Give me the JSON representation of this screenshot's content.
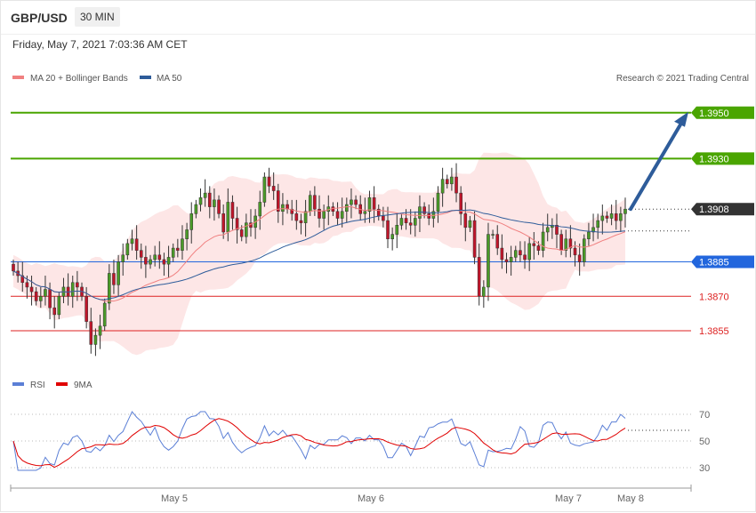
{
  "header": {
    "symbol": "GBP/USD",
    "timeframe": "30 MIN",
    "datetime": "Friday, May 7, 2021 7:03:36 AM CET"
  },
  "legend": {
    "ma20": {
      "label": "MA 20 + Bollinger Bands",
      "color": "#f08080"
    },
    "ma50": {
      "label": "MA 50",
      "color": "#2e5c9a"
    },
    "rsi": {
      "label": "RSI",
      "color": "#5b7fd6"
    },
    "ma9": {
      "label": "9MA",
      "color": "#e00000"
    },
    "copyright": "Research © 2021 Trading Central"
  },
  "chart_data": {
    "type": "candlestick",
    "price_axis": {
      "ylim": [
        1.3836,
        1.396
      ]
    },
    "levels": [
      {
        "value": "1.3950",
        "kind": "resistance",
        "color": "#4aa500"
      },
      {
        "value": "1.3930",
        "kind": "resistance",
        "color": "#4aa500"
      },
      {
        "value": "1.3908",
        "kind": "last",
        "color": "#333333"
      },
      {
        "value": "1.3885",
        "kind": "pivot",
        "color": "#2266dd"
      },
      {
        "value": "1.3870",
        "kind": "support",
        "color": "#dd2222"
      },
      {
        "value": "1.3855",
        "kind": "support",
        "color": "#dd2222"
      }
    ],
    "target_arrow": {
      "from": 1.3908,
      "to": 1.395,
      "color": "#2e5c9a"
    },
    "x_ticks": [
      "May 5",
      "May 6",
      "May 7",
      "May 8"
    ],
    "rsi": {
      "ticks": [
        "70",
        "50",
        "30"
      ],
      "ylim": [
        20,
        80
      ],
      "last": 58
    },
    "close": [
      1.3881,
      1.3879,
      1.3876,
      1.3874,
      1.3872,
      1.3868,
      1.387,
      1.3873,
      1.3865,
      1.3862,
      1.387,
      1.3874,
      1.387,
      1.3876,
      1.3874,
      1.387,
      1.3859,
      1.3849,
      1.3853,
      1.3857,
      1.3867,
      1.388,
      1.3875,
      1.3885,
      1.3888,
      1.3893,
      1.3895,
      1.389,
      1.3887,
      1.3884,
      1.3886,
      1.3888,
      1.3886,
      1.3884,
      1.3887,
      1.3891,
      1.389,
      1.3895,
      1.3899,
      1.3906,
      1.391,
      1.3913,
      1.3915,
      1.3909,
      1.3912,
      1.3906,
      1.3898,
      1.3911,
      1.3904,
      1.3899,
      1.3896,
      1.3902,
      1.39,
      1.3905,
      1.3911,
      1.3922,
      1.3918,
      1.3916,
      1.3907,
      1.391,
      1.3908,
      1.3906,
      1.3903,
      1.3902,
      1.3907,
      1.3914,
      1.3908,
      1.3904,
      1.3907,
      1.3909,
      1.3907,
      1.3904,
      1.3907,
      1.391,
      1.3912,
      1.391,
      1.3906,
      1.3907,
      1.3913,
      1.3908,
      1.3905,
      1.3903,
      1.3895,
      1.3897,
      1.3901,
      1.3904,
      1.3902,
      1.3901,
      1.3904,
      1.3909,
      1.3906,
      1.3904,
      1.3907,
      1.3915,
      1.3921,
      1.3919,
      1.3922,
      1.3915,
      1.3906,
      1.39,
      1.3903,
      1.3887,
      1.387,
      1.3874,
      1.3897,
      1.3897,
      1.3891,
      1.3886,
      1.3885,
      1.3887,
      1.389,
      1.3888,
      1.3886,
      1.3893,
      1.3892,
      1.389,
      1.3898,
      1.39,
      1.3901,
      1.3897,
      1.389,
      1.3895,
      1.3891,
      1.3888,
      1.3885,
      1.3895,
      1.3898,
      1.39,
      1.3903,
      1.3905,
      1.3904,
      1.3906,
      1.3903,
      1.3906,
      1.3908
    ]
  }
}
